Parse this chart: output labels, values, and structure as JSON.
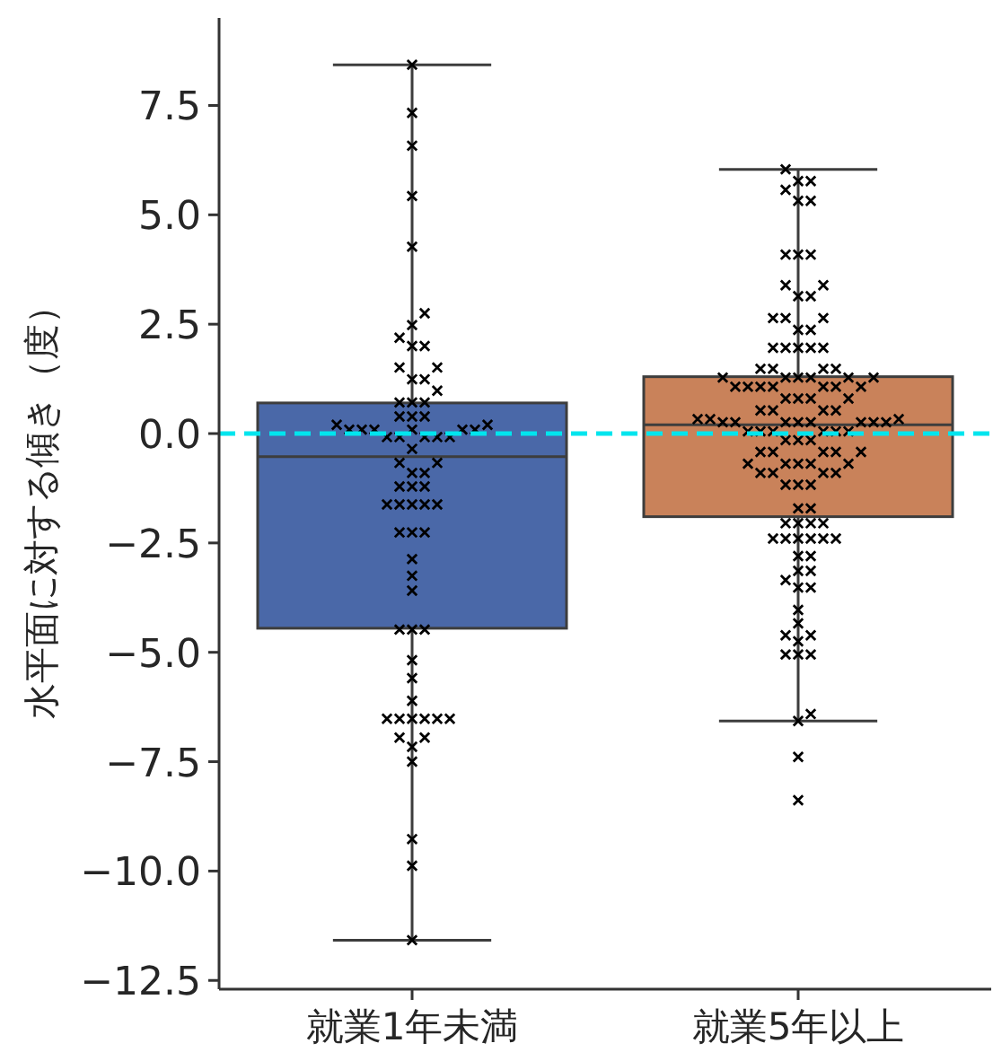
{
  "chart_data": {
    "type": "box",
    "ylabel": "水平面に対する傾き（度）",
    "categories": [
      "就業1年未満",
      "就業5年以上"
    ],
    "colors": [
      "#4a68a8",
      "#c9825a"
    ],
    "boxes": [
      {
        "low": -11.58,
        "q1": -4.45,
        "median": -0.53,
        "q3": 0.7,
        "high": 8.43
      },
      {
        "low": -6.57,
        "q1": -1.9,
        "median": 0.2,
        "q3": 1.3,
        "high": 6.04
      }
    ],
    "series": [
      {
        "type": "scatter",
        "color": "#000000",
        "marker": "cross",
        "x": [
          "就業1年未満",
          "就業1年未満",
          "就業1年未満",
          "就業1年未満",
          "就業1年未満",
          "就業1年未満",
          "就業1年未満",
          "就業1年未満",
          "就業1年未満",
          "就業1年未満",
          "就業1年未満",
          "就業1年未満",
          "就業1年未満",
          "就業1年未満",
          "就業1年未満",
          "就業1年未満",
          "就業1年未満",
          "就業1年未満",
          "就業1年未満",
          "就業1年未満",
          "就業1年未満",
          "就業1年未満",
          "就業1年未満",
          "就業1年未満",
          "就業1年未満",
          "就業1年未満",
          "就業1年未満",
          "就業1年未満",
          "就業1年未満",
          "就業1年未満",
          "就業1年未満",
          "就業1年未満",
          "就業1年未満",
          "就業1年未満",
          "就業1年未満",
          "就業1年未満",
          "就業1年未満",
          "就業1年未満",
          "就業1年未満",
          "就業1年未満",
          "就業1年未満",
          "就業1年未満",
          "就業1年未満",
          "就業1年未満",
          "就業1年未満",
          "就業1年未満",
          "就業1年未満",
          "就業1年未満",
          "就業1年未満",
          "就業1年未満",
          "就業1年未満",
          "就業1年未満",
          "就業1年未満",
          "就業1年未満",
          "就業1年未満",
          "就業1年未満",
          "就業1年未満",
          "就業1年未満",
          "就業1年未満",
          "就業1年未満",
          "就業1年未満",
          "就業1年未満",
          "就業1年未満",
          "就業1年未満",
          "就業1年未満",
          "就業1年未満",
          "就業1年未満",
          "就業1年未満",
          "就業1年未満",
          "就業1年未満",
          "就業1年未満",
          "就業1年未満"
        ],
        "values": [
          8.43,
          7.33,
          6.58,
          5.43,
          4.27,
          2.75,
          2.48,
          2.19,
          2.0,
          2.0,
          1.51,
          1.51,
          1.24,
          1.24,
          0.98,
          0.71,
          0.71,
          0.71,
          0.39,
          0.39,
          0.39,
          0.2,
          0.2,
          0.09,
          0.09,
          0.09,
          0.09,
          0.09,
          0.09,
          -0.08,
          -0.08,
          -0.08,
          -0.08,
          -0.08,
          -0.35,
          -0.67,
          -0.67,
          -0.9,
          -0.9,
          -1.21,
          -1.21,
          -1.21,
          -1.62,
          -1.62,
          -1.62,
          -1.62,
          -1.62,
          -2.26,
          -2.26,
          -2.26,
          -2.87,
          -3.25,
          -3.59,
          -4.48,
          -4.48,
          -4.48,
          -5.18,
          -5.59,
          -6.11,
          -6.52,
          -6.52,
          -6.52,
          -6.52,
          -6.52,
          -6.52,
          -6.95,
          -6.95,
          -7.16,
          -7.5,
          -9.27,
          -9.88,
          -11.58
        ]
      },
      {
        "type": "scatter",
        "color": "#000000",
        "marker": "cross",
        "x": [
          "就業5年以上",
          "就業5年以上",
          "就業5年以上",
          "就業5年以上",
          "就業5年以上",
          "就業5年以上",
          "就業5年以上",
          "就業5年以上",
          "就業5年以上",
          "就業5年以上",
          "就業5年以上",
          "就業5年以上",
          "就業5年以上",
          "就業5年以上",
          "就業5年以上",
          "就業5年以上",
          "就業5年以上",
          "就業5年以上",
          "就業5年以上",
          "就業5年以上",
          "就業5年以上",
          "就業5年以上",
          "就業5年以上",
          "就業5年以上",
          "就業5年以上",
          "就業5年以上",
          "就業5年以上",
          "就業5年以上",
          "就業5年以上",
          "就業5年以上",
          "就業5年以上",
          "就業5年以上",
          "就業5年以上",
          "就業5年以上",
          "就業5年以上",
          "就業5年以上",
          "就業5年以上",
          "就業5年以上",
          "就業5年以上",
          "就業5年以上",
          "就業5年以上",
          "就業5年以上",
          "就業5年以上",
          "就業5年以上",
          "就業5年以上",
          "就業5年以上",
          "就業5年以上",
          "就業5年以上",
          "就業5年以上",
          "就業5年以上",
          "就業5年以上",
          "就業5年以上",
          "就業5年以上",
          "就業5年以上",
          "就業5年以上",
          "就業5年以上",
          "就業5年以上",
          "就業5年以上",
          "就業5年以上",
          "就業5年以上",
          "就業5年以上",
          "就業5年以上",
          "就業5年以上",
          "就業5年以上",
          "就業5年以上",
          "就業5年以上",
          "就業5年以上",
          "就業5年以上",
          "就業5年以上",
          "就業5年以上",
          "就業5年以上",
          "就業5年以上",
          "就業5年以上",
          "就業5年以上",
          "就業5年以上",
          "就業5年以上",
          "就業5年以上",
          "就業5年以上",
          "就業5年以上",
          "就業5年以上",
          "就業5年以上",
          "就業5年以上",
          "就業5年以上",
          "就業5年以上",
          "就業5年以上",
          "就業5年以上",
          "就業5年以上",
          "就業5年以上",
          "就業5年以上",
          "就業5年以上",
          "就業5年以上",
          "就業5年以上",
          "就業5年以上",
          "就業5年以上",
          "就業5年以上",
          "就業5年以上",
          "就業5年以上",
          "就業5年以上",
          "就業5年以上",
          "就業5年以上",
          "就業5年以上",
          "就業5年以上",
          "就業5年以上",
          "就業5年以上",
          "就業5年以上",
          "就業5年以上",
          "就業5年以上",
          "就業5年以上",
          "就業5年以上",
          "就業5年以上",
          "就業5年以上",
          "就業5年以上",
          "就業5年以上",
          "就業5年以上",
          "就業5年以上",
          "就業5年以上"
        ],
        "values": [
          6.04,
          5.77,
          5.77,
          5.57,
          5.32,
          5.32,
          4.09,
          4.09,
          4.09,
          3.39,
          3.39,
          3.14,
          3.14,
          2.64,
          2.64,
          2.64,
          2.37,
          2.37,
          1.96,
          1.96,
          1.96,
          1.96,
          1.96,
          1.48,
          1.48,
          1.48,
          1.48,
          1.28,
          1.28,
          1.28,
          1.28,
          1.28,
          1.28,
          1.07,
          1.07,
          1.07,
          1.07,
          1.07,
          1.07,
          1.07,
          0.8,
          0.8,
          0.8,
          0.8,
          0.53,
          0.53,
          0.53,
          0.53,
          0.33,
          0.33,
          0.33,
          0.26,
          0.26,
          0.26,
          0.26,
          0.26,
          0.26,
          0.26,
          0.26,
          0.05,
          0.05,
          0.05,
          0.05,
          0.05,
          0.05,
          -0.15,
          -0.15,
          -0.15,
          -0.42,
          -0.42,
          -0.42,
          -0.42,
          -0.42,
          -0.69,
          -0.69,
          -0.69,
          -0.69,
          -0.69,
          -0.9,
          -0.9,
          -0.9,
          -0.9,
          -1.17,
          -1.17,
          -1.17,
          -1.71,
          -1.71,
          -2.05,
          -2.05,
          -2.05,
          -2.05,
          -2.4,
          -2.4,
          -2.4,
          -2.4,
          -2.4,
          -2.4,
          -2.8,
          -2.8,
          -3.14,
          -3.14,
          -3.35,
          -3.52,
          -3.52,
          -4.03,
          -4.34,
          -4.61,
          -4.61,
          -4.75,
          -5.05,
          -5.05,
          -5.05,
          -6.41,
          -6.57,
          -7.39,
          -8.38
        ]
      }
    ],
    "ref_lines": [
      {
        "axis": "y",
        "value": 0,
        "color": "#00e5ee",
        "line_style": "dashed"
      }
    ],
    "ylim": [
      -12.7,
      9.5
    ],
    "yticks": [
      {
        "value": 7.5,
        "label": "7.5"
      },
      {
        "value": 5,
        "label": "5.0"
      },
      {
        "value": 2.5,
        "label": "2.5"
      },
      {
        "value": 0,
        "label": "0.0"
      },
      {
        "value": -2.5,
        "label": "−2.5"
      },
      {
        "value": -5,
        "label": "−5.0"
      },
      {
        "value": -7.5,
        "label": "−7.5"
      },
      {
        "value": -10,
        "label": "−10.0"
      },
      {
        "value": -12.5,
        "label": "−12.5"
      }
    ]
  }
}
